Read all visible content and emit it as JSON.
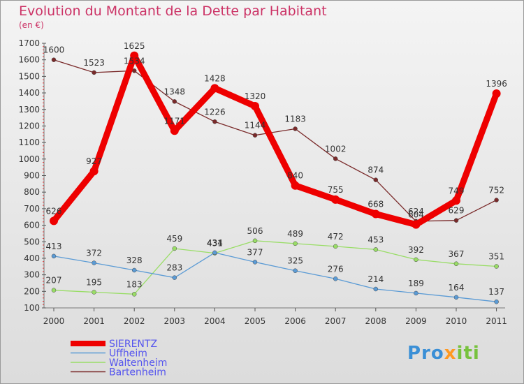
{
  "title": "Evolution du Montant de la Dette par Habitant",
  "unit": "(en €)",
  "logo": {
    "part1": "Pro",
    "part2": "x",
    "part3": "iti"
  },
  "chart_data": {
    "type": "line",
    "title": "Evolution du Montant de la Dette par Habitant",
    "ylabel": "(en €)",
    "xlabel": "",
    "categories": [
      "2000",
      "2001",
      "2002",
      "2003",
      "2004",
      "2005",
      "2006",
      "2007",
      "2008",
      "2009",
      "2010",
      "2011"
    ],
    "ylim": [
      100,
      1700
    ],
    "yticks": [
      100,
      200,
      300,
      400,
      500,
      600,
      700,
      800,
      900,
      1000,
      1100,
      1200,
      1300,
      1400,
      1500,
      1600,
      1700
    ],
    "grid": false,
    "legend_position": "bottom-left",
    "series": [
      {
        "name": "Bartenheim",
        "color": "#7a2a2a",
        "values": [
          1600,
          1523,
          1534,
          1348,
          1226,
          1144,
          1183,
          1002,
          874,
          624,
          629,
          752
        ]
      },
      {
        "name": "Waltenheim",
        "color": "#99dd66",
        "values": [
          207,
          195,
          183,
          459,
          431,
          506,
          489,
          472,
          453,
          392,
          367,
          351
        ]
      },
      {
        "name": "Uffheim",
        "color": "#5b9bd5",
        "values": [
          413,
          372,
          328,
          283,
          434,
          377,
          325,
          276,
          214,
          189,
          164,
          137
        ]
      },
      {
        "name": "SIERENTZ",
        "color": "#ee0000",
        "values": [
          626,
          927,
          1625,
          1171,
          1428,
          1320,
          840,
          755,
          668,
          604,
          749,
          1396
        ]
      }
    ],
    "legend_order": [
      "SIERENTZ",
      "Uffheim",
      "Waltenheim",
      "Bartenheim"
    ]
  }
}
